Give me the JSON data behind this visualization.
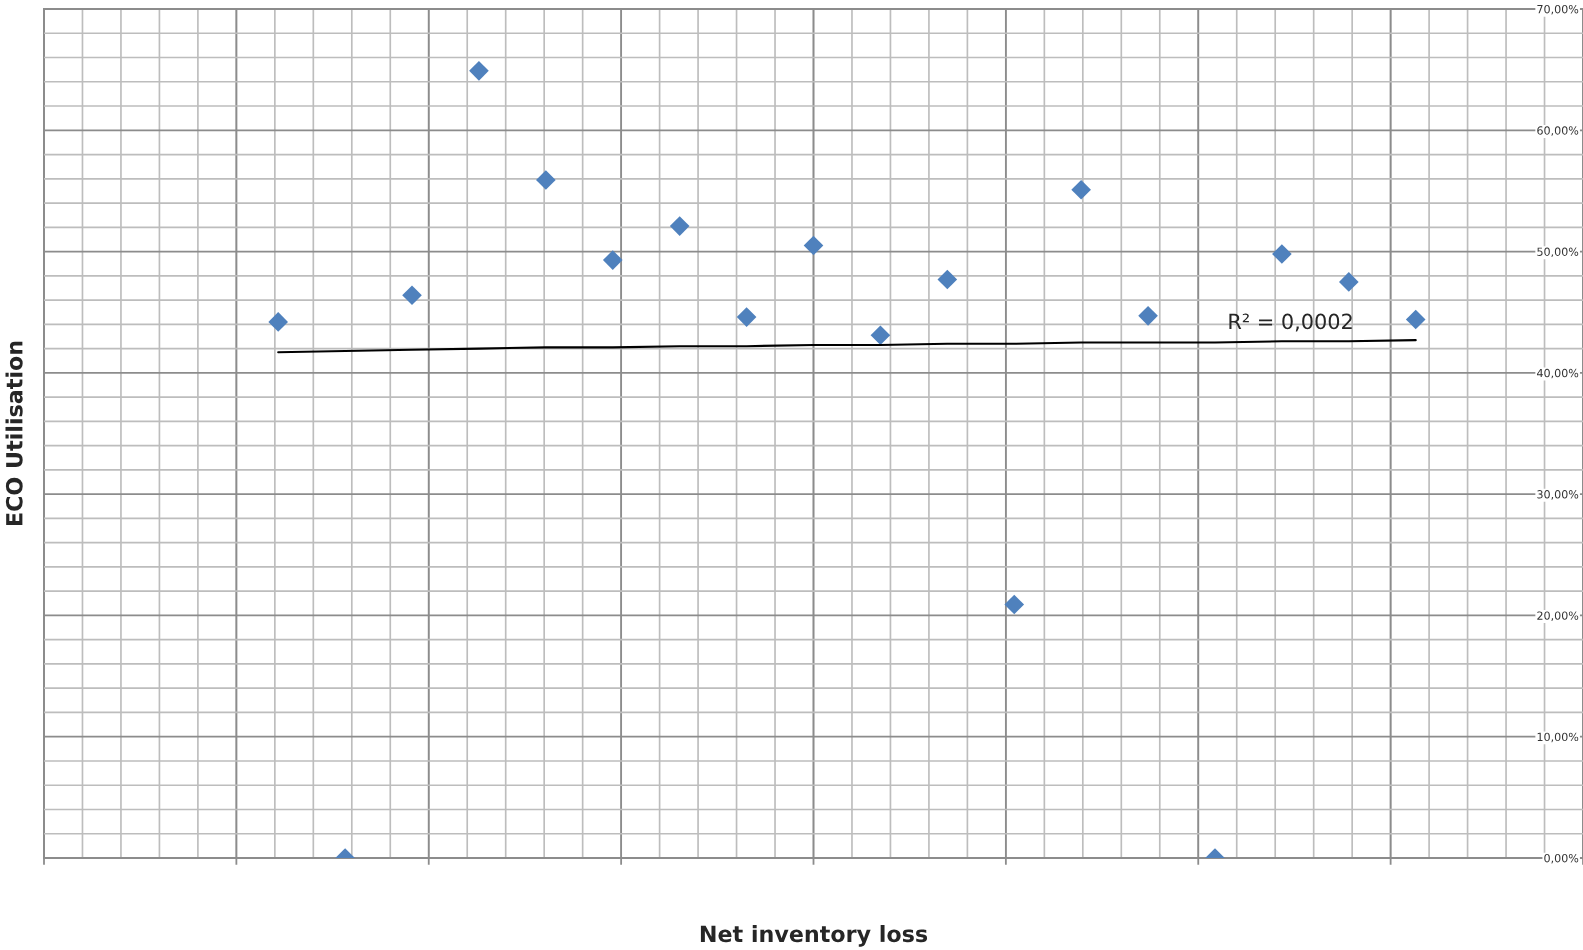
{
  "chart_data": {
    "type": "scatter",
    "xlabel": "Net inventory loss",
    "categories": [
      null,
      null,
      null,
      null,
      null,
      null,
      null,
      null,
      null,
      null,
      null,
      null,
      null,
      null,
      null,
      null,
      null,
      null
    ],
    "ylim": [
      0,
      70
    ],
    "yticks": [
      {
        "value": 0,
        "label": "0,00%"
      },
      {
        "value": 10,
        "label": "10,00%"
      },
      {
        "value": 20,
        "label": "20,00%"
      },
      {
        "value": 30,
        "label": "30,00%"
      },
      {
        "value": 40,
        "label": "40,00%"
      },
      {
        "value": 50,
        "label": "50,00%"
      },
      {
        "value": 60,
        "label": "60,00%"
      },
      {
        "value": 70,
        "label": "70,00%"
      }
    ],
    "grid": true,
    "tick_labels": "y",
    "annotations": [
      "R² = 0,0002",
      "ECO Utilisation"
    ],
    "series": [
      {
        "color": "#4f81bd",
        "marker": "diamond",
        "values": [
          44.2,
          0,
          46.4,
          64.9,
          55.9,
          49.3,
          52.1,
          44.6,
          50.5,
          43.1,
          47.7,
          20.9,
          55.1,
          44.7,
          0,
          49.8,
          47.5,
          44.4
        ]
      },
      {
        "type": "line",
        "color": "#000000",
        "marker": "none",
        "line_style": "solid",
        "values": [
          41.7,
          41.8,
          41.9,
          42.0,
          42.1,
          42.1,
          42.2,
          42.2,
          42.3,
          42.3,
          42.4,
          42.4,
          42.5,
          42.5,
          42.5,
          42.6,
          42.6,
          42.7
        ]
      }
    ]
  }
}
